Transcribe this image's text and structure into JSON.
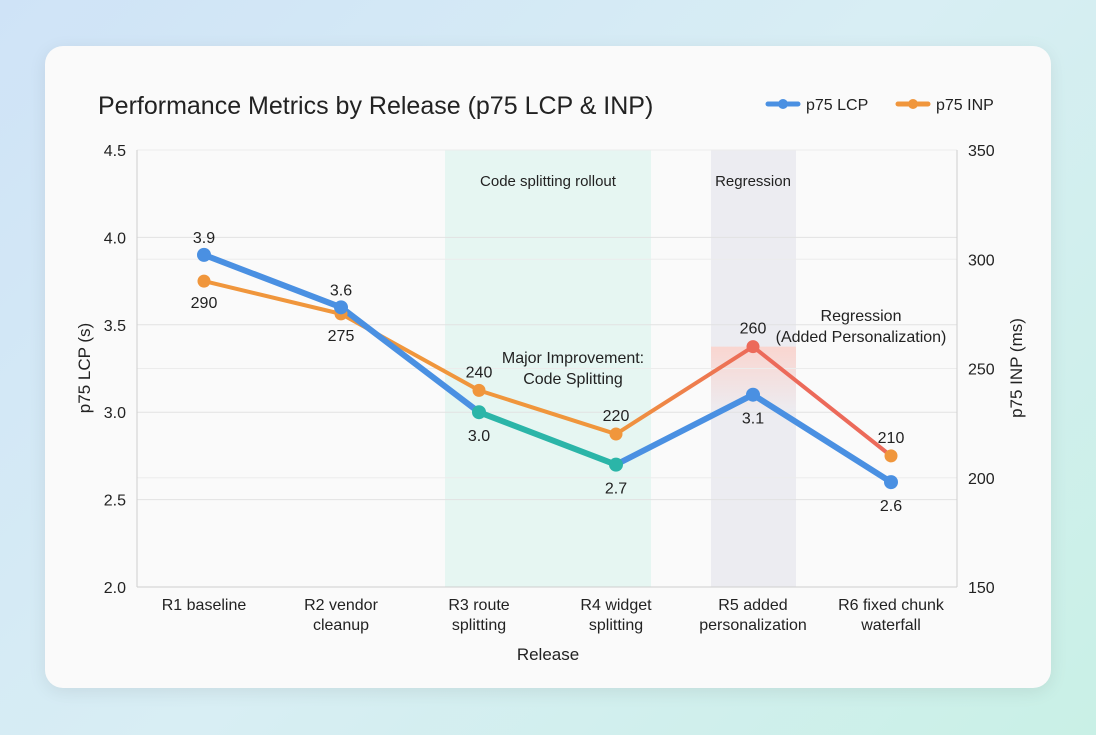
{
  "chart_data": {
    "type": "line",
    "title": "Performance Metrics by Release (p75 LCP & INP)",
    "xlabel": "Release",
    "ylabel": "p75 LCP (s)",
    "y2label": "p75 INP (ms)",
    "categories": [
      "R1 baseline",
      "R2 vendor cleanup",
      "R3 route splitting",
      "R4 widget splitting",
      "R5 added personalization",
      "R6 fixed chunk waterfall"
    ],
    "category_lines": [
      [
        "R1 baseline"
      ],
      [
        "R2 vendor",
        "cleanup"
      ],
      [
        "R3 route",
        "splitting"
      ],
      [
        "R4 widget",
        "splitting"
      ],
      [
        "R5 added",
        "personalization"
      ],
      [
        "R6 fixed chunk",
        "waterfall"
      ]
    ],
    "ylim": [
      2.0,
      4.5
    ],
    "y_ticks": [
      "2.0",
      "2.5",
      "3.0",
      "3.5",
      "4.0",
      "4.5"
    ],
    "y2lim": [
      150,
      350
    ],
    "y2_ticks": [
      "150",
      "200",
      "250",
      "300",
      "350"
    ],
    "grid": true,
    "legend_position": "top-right",
    "series": [
      {
        "name": "p75 LCP",
        "axis": "left",
        "color": "#4a90e2",
        "values": [
          3.9,
          3.6,
          3.0,
          2.7,
          3.1,
          2.6
        ],
        "labels": [
          "3.9",
          "3.6",
          "3.0",
          "2.7",
          "3.1",
          "2.6"
        ]
      },
      {
        "name": "p75 INP",
        "axis": "right",
        "color": "#f0963c",
        "values": [
          290,
          275,
          240,
          220,
          260,
          210
        ],
        "labels": [
          "290",
          "275",
          "240",
          "220",
          "260",
          "210"
        ]
      }
    ],
    "highlight_colors": {
      "improvement": "#2bb5a8",
      "regression": "#ec6a5a"
    },
    "shaded_regions": [
      {
        "label": "Code splitting rollout",
        "from": "R3 route splitting",
        "to": "R4 widget splitting",
        "color": "#e6f6f2"
      },
      {
        "label": "Regression",
        "at": "R5 added personalization",
        "color": "#ececf1"
      }
    ],
    "annotations": [
      {
        "lines": [
          "Major Improvement:",
          "Code Splitting"
        ]
      },
      {
        "lines": [
          "Regression",
          "(Added Personalization)"
        ]
      }
    ]
  }
}
